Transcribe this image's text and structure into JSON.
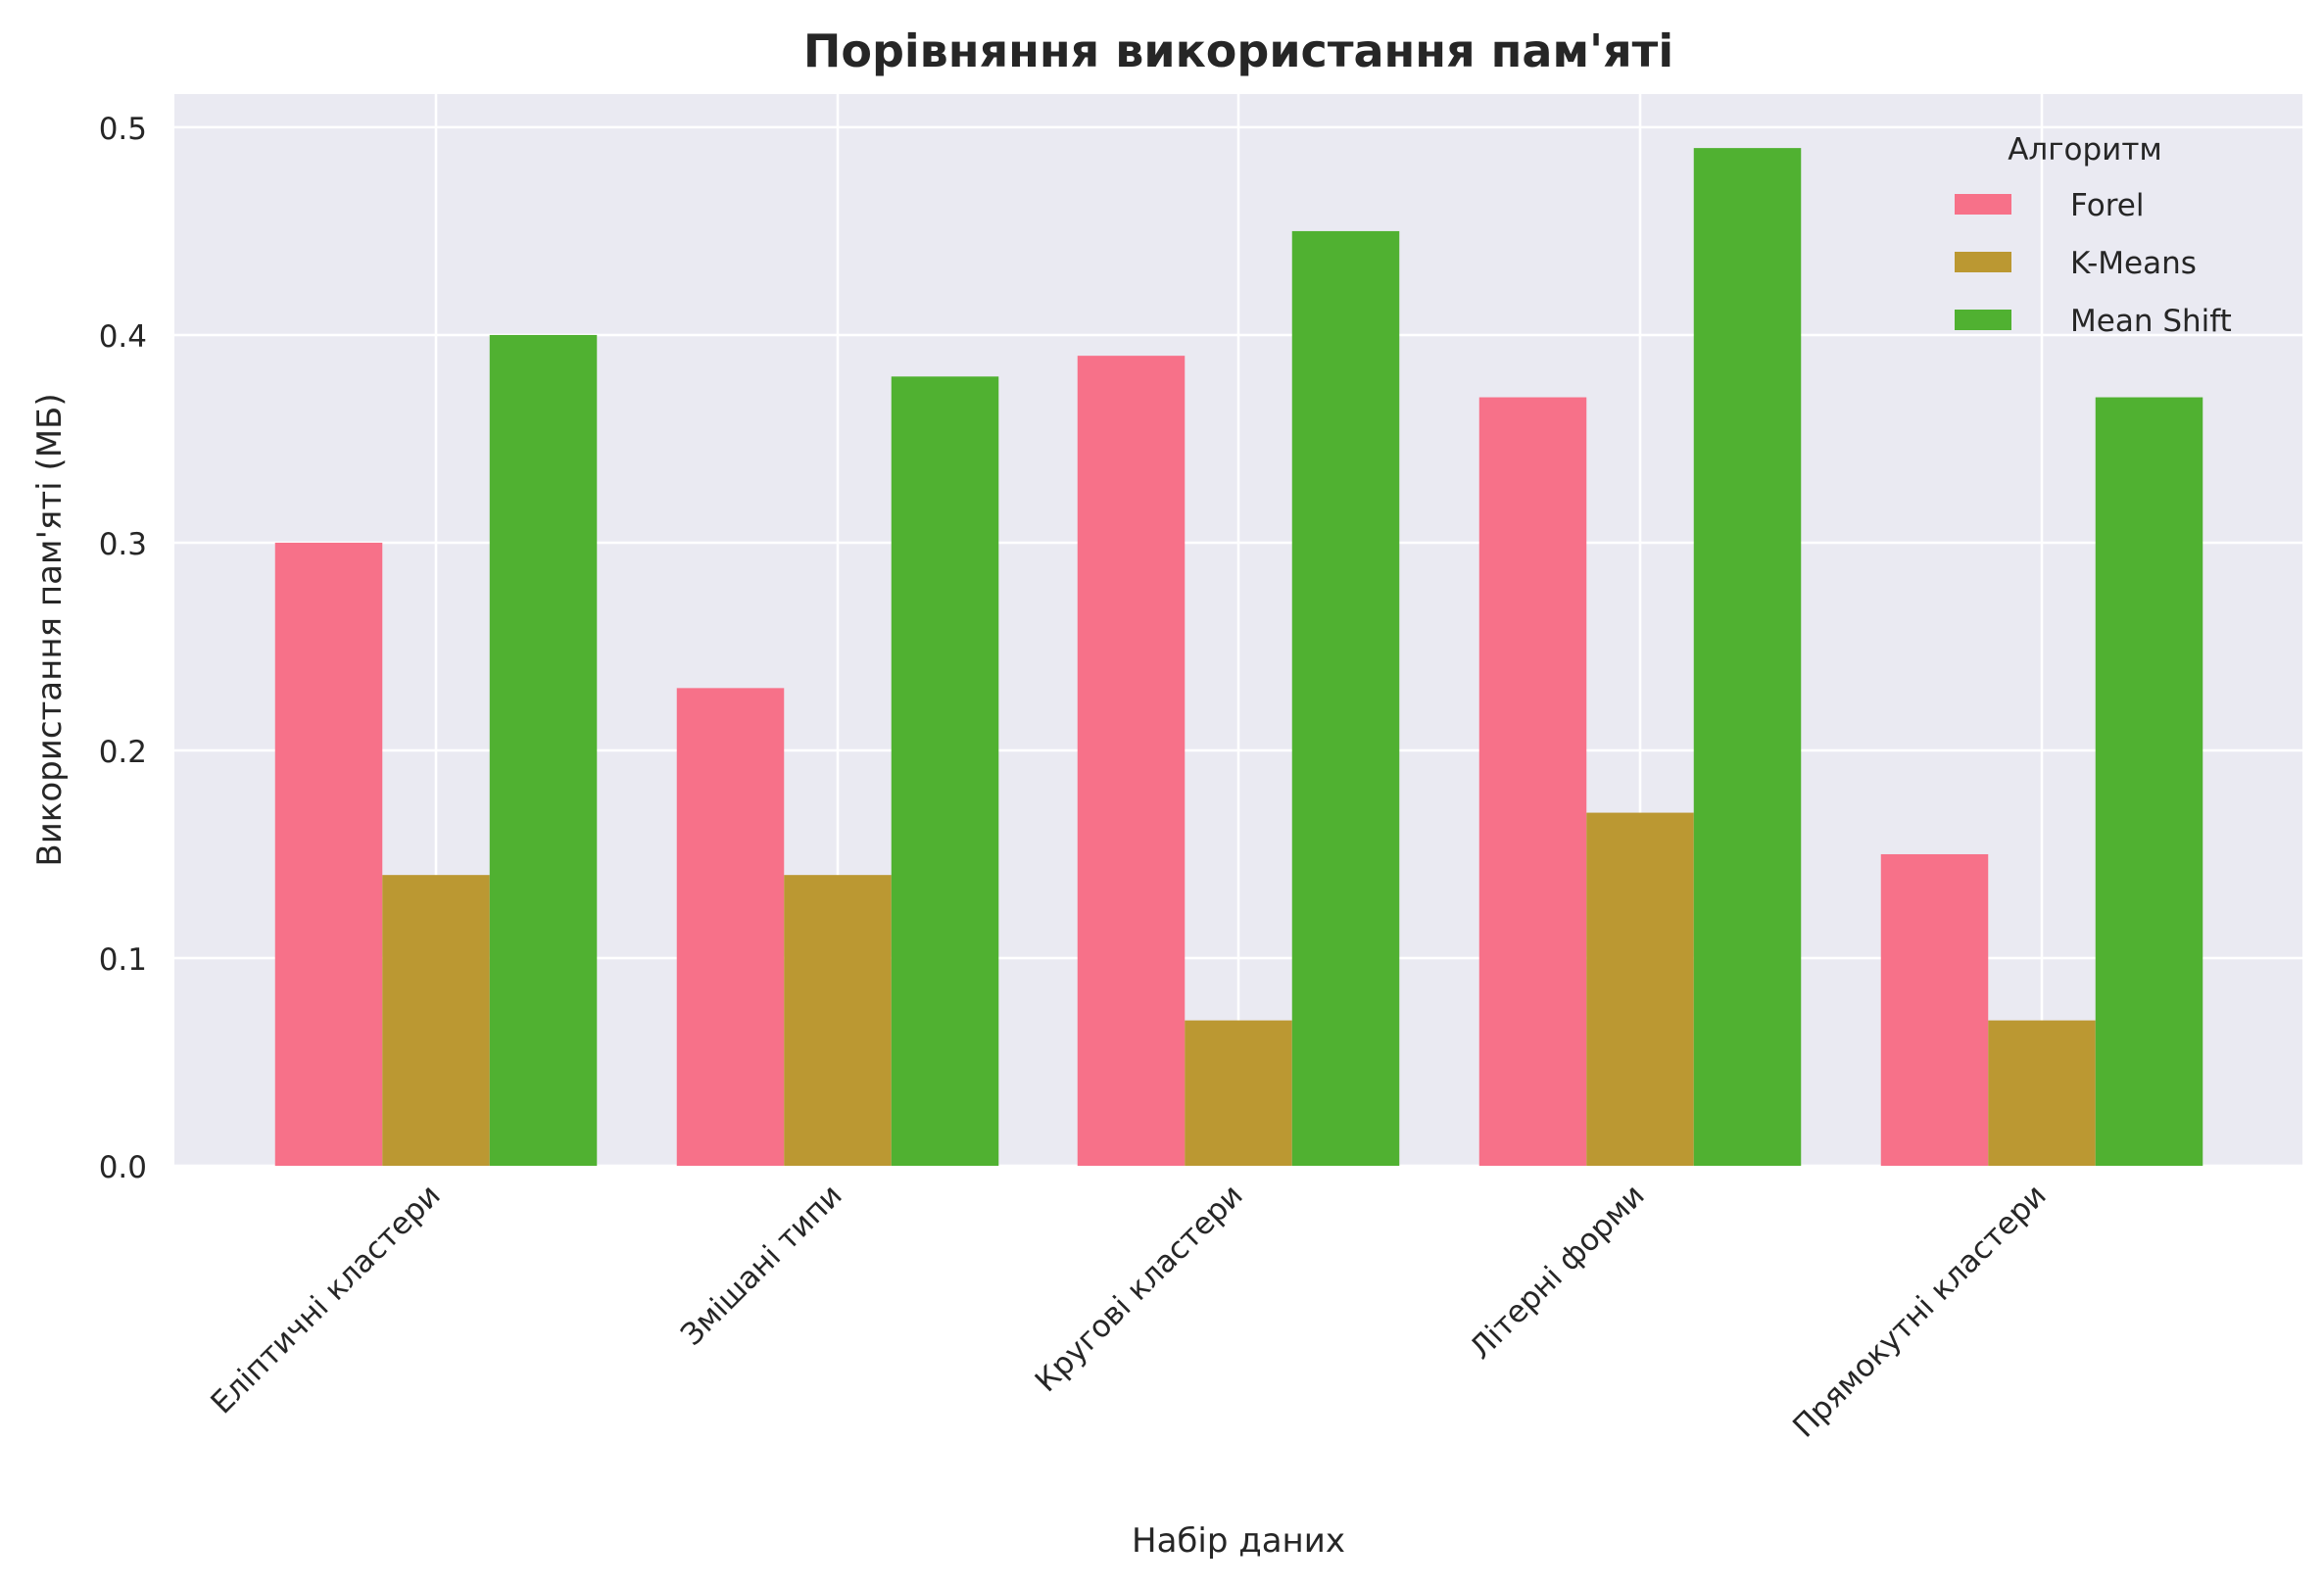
{
  "chart_data": {
    "type": "bar",
    "title": "Порівняння використання пам'яті",
    "xlabel": "Набір даних",
    "ylabel": "Використання пам'яті (МБ)",
    "categories": [
      "Еліптичні кластери",
      "Змішані типи",
      "Кругові кластери",
      "Літерні форми",
      "Прямокутні кластери"
    ],
    "series": [
      {
        "name": "Forel",
        "color": "#f77189",
        "values": [
          0.3,
          0.23,
          0.39,
          0.37,
          0.15
        ]
      },
      {
        "name": "K-Means",
        "color": "#bb9832",
        "values": [
          0.14,
          0.14,
          0.07,
          0.17,
          0.07
        ]
      },
      {
        "name": "Mean Shift",
        "color": "#50b131",
        "values": [
          0.4,
          0.38,
          0.45,
          0.49,
          0.37
        ]
      }
    ],
    "ylim": [
      0,
      0.516
    ],
    "yticks": [
      "0.0",
      "0.1",
      "0.2",
      "0.3",
      "0.4",
      "0.5"
    ],
    "legend": {
      "title": "Алгоритм",
      "position": "top-right"
    },
    "grid": true,
    "background": "#eaeaf2"
  }
}
